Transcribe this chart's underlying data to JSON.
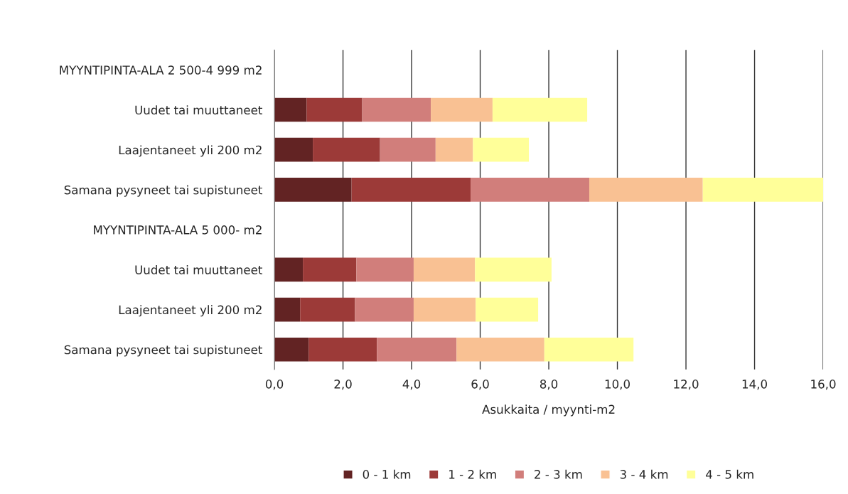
{
  "chart_data": {
    "type": "bar",
    "orientation": "horizontal",
    "stacked": true,
    "xlabel": "Asukkaita / myynti-m2",
    "categories": [
      "MYYNTIPINTA-ALA 2 500-4 999 m2",
      "Uudet tai muuttaneet",
      "Laajentaneet yli 200 m2",
      "Samana pysyneet tai supistuneet",
      "MYYNTIPINTA-ALA 5 000- m2",
      "Uudet tai muuttaneet",
      "Laajentaneet yli 200 m2",
      "Samana pysyneet tai supistuneet"
    ],
    "series": [
      {
        "name": "0 - 1 km",
        "color": "#622323",
        "values": [
          null,
          0.94,
          1.12,
          2.25,
          null,
          0.83,
          0.75,
          1.0
        ]
      },
      {
        "name": "1 - 2 km",
        "color": "#9c3a38",
        "values": [
          null,
          1.62,
          1.96,
          3.47,
          null,
          1.56,
          1.6,
          1.99
        ]
      },
      {
        "name": "2 - 3 km",
        "color": "#d17e7b",
        "values": [
          null,
          2.0,
          1.62,
          3.46,
          null,
          1.67,
          1.71,
          2.32
        ]
      },
      {
        "name": "3 - 4 km",
        "color": "#f9c193",
        "values": [
          null,
          1.8,
          1.09,
          3.31,
          null,
          1.79,
          1.81,
          2.56
        ]
      },
      {
        "name": "4 - 5 km",
        "color": "#ffff99",
        "values": [
          null,
          2.76,
          1.63,
          3.51,
          null,
          2.23,
          1.82,
          2.6
        ]
      }
    ],
    "xlim": [
      0,
      16
    ],
    "xticks": [
      {
        "value": 0,
        "label": "0,0"
      },
      {
        "value": 2,
        "label": "2,0"
      },
      {
        "value": 4,
        "label": "4,0"
      },
      {
        "value": 6,
        "label": "6,0"
      },
      {
        "value": 8,
        "label": "8,0"
      },
      {
        "value": 10,
        "label": "10,0"
      },
      {
        "value": 12,
        "label": "12,0"
      },
      {
        "value": 14,
        "label": "14,0"
      },
      {
        "value": 16,
        "label": "16,0"
      }
    ],
    "grid": "x",
    "legend": "bottom"
  }
}
